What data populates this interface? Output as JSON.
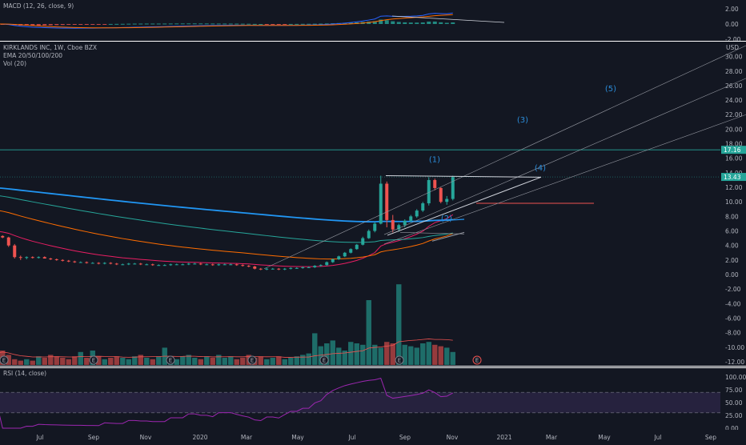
{
  "macd": {
    "title": "MACD (12, 26, close, 9)",
    "ticks": [
      "2.00",
      "0.00",
      "-2.00"
    ],
    "tick_values": [
      2,
      0,
      -2
    ]
  },
  "main": {
    "symbol_line": "KIRKLANDS INC, 1W, Cboe BZX",
    "ema_line": "EMA 20/50/100/200",
    "vol_line": "Vol (20)",
    "currency": "USD",
    "ticks": [
      "30.00",
      "28.00",
      "26.00",
      "24.00",
      "22.00",
      "20.00",
      "18.00",
      "16.00",
      "14.00",
      "12.00",
      "10.00",
      "8.00",
      "6.00",
      "4.00",
      "2.00",
      "0.00",
      "-2.00",
      "-4.00",
      "-6.00",
      "-8.00",
      "-10.00",
      "-12.00"
    ],
    "tick_values": [
      30,
      28,
      26,
      24,
      22,
      20,
      18,
      16,
      14,
      12,
      10,
      8,
      6,
      4,
      2,
      0,
      -2,
      -4,
      -6,
      -8,
      -10,
      -12
    ],
    "price_tags": [
      {
        "text": "17.16",
        "value": 17.16,
        "color": "#26a69a"
      },
      {
        "text": "13.43",
        "value": 13.43,
        "color": "#26a69a"
      }
    ],
    "wave_labels": [
      "(1)",
      "(2)",
      "(3)",
      "(4)",
      "(5)"
    ],
    "earnings_marker": "E"
  },
  "rsi": {
    "title": "RSI (14, close)",
    "ticks": [
      "100.00",
      "75.00",
      "50.00",
      "25.00",
      "0.00"
    ],
    "tick_values": [
      100,
      75,
      50,
      25,
      0
    ],
    "band": [
      30,
      70
    ]
  },
  "time_axis": [
    "Jul",
    "Sep",
    "Nov",
    "2020",
    "Mar",
    "May",
    "Jul",
    "Sep",
    "Nov",
    "2021",
    "Mar",
    "May",
    "Jul",
    "Sep"
  ],
  "colors": {
    "up": "#26a69a",
    "down": "#ef5350",
    "ema20": "#e91e63",
    "ema50": "#ff6d00",
    "ema100": "#26a69a",
    "ema200": "#2196f3",
    "rsi": "#9c27b0",
    "wave": "#2b8cd9"
  },
  "chart_data": {
    "type": "candlestick",
    "x_start": "2019-06-03",
    "interval": "1W",
    "candles": [
      [
        5.7,
        5.8,
        5.2,
        5.3
      ],
      [
        5.3,
        5.4,
        5.0,
        5.1
      ],
      [
        5.1,
        5.2,
        3.8,
        4.0
      ],
      [
        4.0,
        4.2,
        2.2,
        2.4
      ],
      [
        2.4,
        2.6,
        2.0,
        2.3
      ],
      [
        2.3,
        2.5,
        2.1,
        2.4
      ],
      [
        2.4,
        2.5,
        2.2,
        2.3
      ],
      [
        2.3,
        2.5,
        2.2,
        2.4
      ],
      [
        2.4,
        2.5,
        2.2,
        2.2
      ],
      [
        2.2,
        2.3,
        2.0,
        2.1
      ],
      [
        2.1,
        2.2,
        1.9,
        2.0
      ],
      [
        2.0,
        2.1,
        1.8,
        1.9
      ],
      [
        1.9,
        2.0,
        1.7,
        1.8
      ],
      [
        1.8,
        1.9,
        1.6,
        1.7
      ],
      [
        1.7,
        1.8,
        1.6,
        1.7
      ],
      [
        1.7,
        1.8,
        1.5,
        1.6
      ],
      [
        1.6,
        1.7,
        1.5,
        1.6
      ],
      [
        1.6,
        1.7,
        1.4,
        1.5
      ],
      [
        1.5,
        1.7,
        1.4,
        1.6
      ],
      [
        1.6,
        1.7,
        1.4,
        1.5
      ],
      [
        1.5,
        1.6,
        1.3,
        1.4
      ],
      [
        1.4,
        1.5,
        1.3,
        1.4
      ],
      [
        1.4,
        1.6,
        1.3,
        1.5
      ],
      [
        1.5,
        1.6,
        1.4,
        1.5
      ],
      [
        1.5,
        1.6,
        1.3,
        1.4
      ],
      [
        1.4,
        1.5,
        1.3,
        1.4
      ],
      [
        1.4,
        1.5,
        1.2,
        1.3
      ],
      [
        1.3,
        1.4,
        1.2,
        1.3
      ],
      [
        1.3,
        1.4,
        1.2,
        1.3
      ],
      [
        1.3,
        1.5,
        1.2,
        1.4
      ],
      [
        1.4,
        1.5,
        1.3,
        1.4
      ],
      [
        1.4,
        1.5,
        1.3,
        1.4
      ],
      [
        1.4,
        1.6,
        1.3,
        1.5
      ],
      [
        1.5,
        1.6,
        1.4,
        1.5
      ],
      [
        1.5,
        1.6,
        1.3,
        1.4
      ],
      [
        1.4,
        1.5,
        1.3,
        1.4
      ],
      [
        1.4,
        1.5,
        1.2,
        1.3
      ],
      [
        1.3,
        1.5,
        1.2,
        1.4
      ],
      [
        1.4,
        1.5,
        1.3,
        1.4
      ],
      [
        1.4,
        1.5,
        1.3,
        1.4
      ],
      [
        1.4,
        1.5,
        1.2,
        1.3
      ],
      [
        1.3,
        1.4,
        1.1,
        1.2
      ],
      [
        1.2,
        1.3,
        1.0,
        1.1
      ],
      [
        1.1,
        1.2,
        0.7,
        0.8
      ],
      [
        0.8,
        0.9,
        0.6,
        0.7
      ],
      [
        0.7,
        0.9,
        0.6,
        0.8
      ],
      [
        0.8,
        0.9,
        0.7,
        0.8
      ],
      [
        0.8,
        0.9,
        0.6,
        0.7
      ],
      [
        0.7,
        0.9,
        0.6,
        0.8
      ],
      [
        0.8,
        1.0,
        0.7,
        0.9
      ],
      [
        0.9,
        1.0,
        0.8,
        0.9
      ],
      [
        0.9,
        1.1,
        0.8,
        1.0
      ],
      [
        1.0,
        1.1,
        0.9,
        1.0
      ],
      [
        1.0,
        1.3,
        0.9,
        1.2
      ],
      [
        1.2,
        1.4,
        1.1,
        1.3
      ],
      [
        1.3,
        1.8,
        1.2,
        1.7
      ],
      [
        1.7,
        2.2,
        1.6,
        2.1
      ],
      [
        2.1,
        2.6,
        2.0,
        2.5
      ],
      [
        2.5,
        3.1,
        2.4,
        3.0
      ],
      [
        3.0,
        3.6,
        2.9,
        3.5
      ],
      [
        3.5,
        4.2,
        3.4,
        4.1
      ],
      [
        4.1,
        5.2,
        4.0,
        5.0
      ],
      [
        5.0,
        6.2,
        4.9,
        6.0
      ],
      [
        6.0,
        7.2,
        5.8,
        7.0
      ],
      [
        7.0,
        13.6,
        6.9,
        12.5
      ],
      [
        12.5,
        12.8,
        6.5,
        7.5
      ],
      [
        7.5,
        8.2,
        5.8,
        6.2
      ],
      [
        6.2,
        7.0,
        5.9,
        6.8
      ],
      [
        6.8,
        7.6,
        6.5,
        7.4
      ],
      [
        7.4,
        8.2,
        7.2,
        8.0
      ],
      [
        8.0,
        9.0,
        7.8,
        8.8
      ],
      [
        8.8,
        10.0,
        8.6,
        9.8
      ],
      [
        9.8,
        13.4,
        9.5,
        13.0
      ],
      [
        13.0,
        13.2,
        11.6,
        11.9
      ],
      [
        11.9,
        12.0,
        9.8,
        10.0
      ],
      [
        10.0,
        10.8,
        9.6,
        10.4
      ],
      [
        10.4,
        13.6,
        10.2,
        13.4
      ]
    ],
    "volume": [
      8,
      10,
      7,
      4,
      3,
      4,
      3,
      6,
      5,
      7,
      6,
      5,
      4,
      6,
      9,
      5,
      10,
      6,
      4,
      5,
      6,
      5,
      4,
      6,
      7,
      5,
      4,
      6,
      12,
      5,
      4,
      6,
      7,
      5,
      4,
      6,
      5,
      7,
      5,
      6,
      4,
      5,
      7,
      5,
      6,
      4,
      5,
      6,
      4,
      5,
      6,
      7,
      8,
      22,
      13,
      15,
      17,
      12,
      10,
      16,
      15,
      14,
      45,
      14,
      12,
      16,
      15,
      56,
      14,
      13,
      12,
      15,
      16,
      14,
      13,
      12,
      9
    ],
    "levels": [
      17.16,
      13.43,
      9.8
    ]
  }
}
